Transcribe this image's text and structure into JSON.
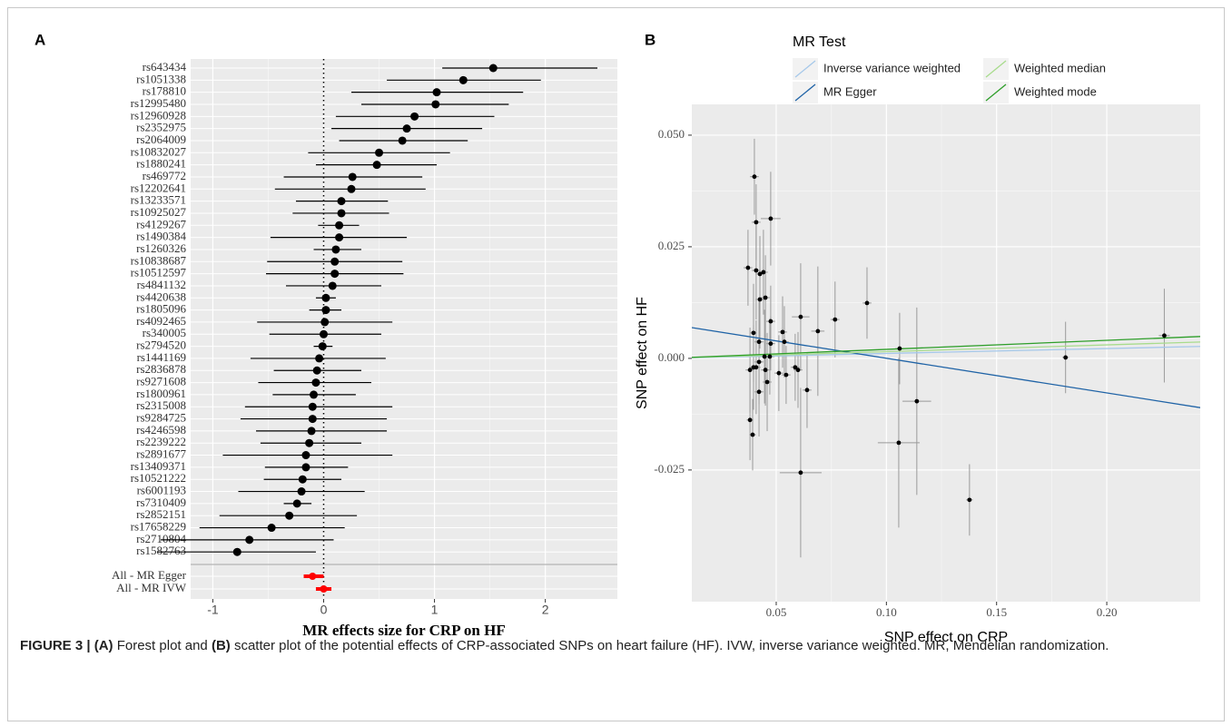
{
  "chart_data": [
    {
      "type": "forest",
      "panel_label": "A",
      "xlabel": "MR effects size for CRP on HF",
      "xlim": [
        -1.2,
        2.65
      ],
      "xticks": [
        -1,
        0,
        1,
        2
      ],
      "ref_line": 0,
      "grid": true,
      "series": [
        {
          "color": "#000000",
          "categories": [
            "rs643434",
            "rs1051338",
            "rs178810",
            "rs12995480",
            "rs12960928",
            "rs2352975",
            "rs2064009",
            "rs10832027",
            "rs1880241",
            "rs469772",
            "rs12202641",
            "rs13233571",
            "rs10925027",
            "rs4129267",
            "rs1490384",
            "rs1260326",
            "rs10838687",
            "rs10512597",
            "rs4841132",
            "rs4420638",
            "rs1805096",
            "rs4092465",
            "rs340005",
            "rs2794520",
            "rs1441169",
            "rs2836878",
            "rs9271608",
            "rs1800961",
            "rs2315008",
            "rs9284725",
            "rs4246598",
            "rs2239222",
            "rs2891677",
            "rs13409371",
            "rs10521222",
            "rs6001193",
            "rs7310409",
            "rs2852151",
            "rs17658229",
            "rs2710804",
            "rs1582763"
          ],
          "values": [
            1.53,
            1.26,
            1.02,
            1.01,
            0.82,
            0.75,
            0.71,
            0.5,
            0.48,
            0.26,
            0.25,
            0.16,
            0.16,
            0.14,
            0.14,
            0.11,
            0.1,
            0.1,
            0.08,
            0.02,
            0.02,
            0.01,
            0,
            -0.01,
            -0.04,
            -0.06,
            -0.07,
            -0.09,
            -0.1,
            -0.1,
            -0.11,
            -0.13,
            -0.16,
            -0.16,
            -0.19,
            -0.2,
            -0.24,
            -0.31,
            -0.47,
            -0.67,
            -0.78
          ],
          "lower": [
            1.07,
            0.57,
            0.25,
            0.34,
            0.11,
            0.07,
            0.14,
            -0.14,
            -0.07,
            -0.36,
            -0.44,
            -0.25,
            -0.28,
            -0.05,
            -0.48,
            -0.09,
            -0.51,
            -0.52,
            -0.34,
            -0.07,
            -0.13,
            -0.6,
            -0.49,
            -0.09,
            -0.66,
            -0.45,
            -0.59,
            -0.46,
            -0.71,
            -0.75,
            -0.61,
            -0.57,
            -0.91,
            -0.53,
            -0.54,
            -0.77,
            -0.36,
            -0.94,
            -1.12,
            -1.47,
            -1.5
          ],
          "upper": [
            2.47,
            1.96,
            1.8,
            1.67,
            1.54,
            1.43,
            1.3,
            1.14,
            1.02,
            0.89,
            0.92,
            0.58,
            0.59,
            0.32,
            0.75,
            0.34,
            0.71,
            0.72,
            0.52,
            0.11,
            0.16,
            0.62,
            0.52,
            0.08,
            0.56,
            0.34,
            0.43,
            0.29,
            0.62,
            0.57,
            0.57,
            0.34,
            0.62,
            0.22,
            0.16,
            0.37,
            -0.11,
            0.3,
            0.19,
            0.09,
            -0.07
          ]
        },
        {
          "color": "#ff0000",
          "categories": [
            "All - MR Egger",
            "All - MR IVW"
          ],
          "values": [
            -0.1,
            0
          ],
          "lower": [
            -0.18,
            -0.07
          ],
          "upper": [
            0,
            0.07
          ]
        }
      ]
    },
    {
      "type": "scatter",
      "panel_label": "B",
      "xlabel": "SNP effect on CRP",
      "ylabel": "SNP effect on HF",
      "legend_title": "MR Test",
      "xlim": [
        0.0117,
        0.2424
      ],
      "ylim": [
        -0.0545,
        0.0569
      ],
      "xticks": [
        0.05,
        {
          "value": 0.1,
          "label": "0.10"
        },
        0.15,
        {
          "value": 0.2,
          "label": "0.20"
        }
      ],
      "yticks": [
        {
          "value": 0.05,
          "label": "0.050"
        },
        {
          "value": 0.025,
          "label": "0.025"
        },
        {
          "value": 0,
          "label": "0.000"
        },
        {
          "value": -0.025,
          "label": "-0.025"
        }
      ],
      "grid": true,
      "color": "#000000",
      "error_color": "#9a9a9a",
      "x": [
        0.0401,
        0.0409,
        0.0475,
        0.0372,
        0.0409,
        0.0426,
        0.0442,
        0.0426,
        0.0451,
        0.0475,
        0.0397,
        0.0529,
        0.0537,
        0.0422,
        0.0475,
        0.0611,
        0.0689,
        0.0767,
        0.0912,
        0.106,
        0.1813,
        0.2261,
        0.0447,
        0.0471,
        0.0381,
        0.0397,
        0.0409,
        0.0451,
        0.0459,
        0.0422,
        0.0512,
        0.0586,
        0.0599,
        0.0545,
        0.064,
        0.0381,
        0.0393,
        0.1138,
        0.1056,
        0.0611,
        0.1377,
        0.0422
      ],
      "y": [
        0.0407,
        0.0305,
        0.0313,
        0.0203,
        0.0197,
        0.0189,
        0.0193,
        0.0132,
        0.0136,
        0.0083,
        0.0057,
        0.0059,
        0.0037,
        0.0037,
        0.0033,
        0.0093,
        0.0061,
        0.0087,
        0.0124,
        0.0022,
        0.0002,
        0.0051,
        0.0004,
        0.0004,
        -0.0026,
        -0.002,
        -0.002,
        -0.0026,
        -0.0053,
        -0.0075,
        -0.0033,
        -0.002,
        -0.0026,
        -0.0037,
        -0.0071,
        -0.0138,
        -0.0171,
        -0.0096,
        -0.0189,
        -0.0256,
        -0.0317,
        -0.0008
      ],
      "xerr": [
        0.002,
        0.002,
        0.0045,
        0.002,
        0.002,
        0.002,
        0.002,
        0.002,
        0.002,
        0.002,
        0.0015,
        0.002,
        0.002,
        0.002,
        0.002,
        0.004,
        0.003,
        0.002,
        0.002,
        0.002,
        0.0015,
        0.0025,
        0.002,
        0.002,
        0.002,
        0.002,
        0.002,
        0.002,
        0.002,
        0.002,
        0.002,
        0.002,
        0.002,
        0.002,
        0.002,
        0.0015,
        0.0015,
        0.0065,
        0.0095,
        0.0095,
        0.0015,
        0.002
      ],
      "yerr": [
        0.0085,
        0.0085,
        0.0105,
        0.0085,
        0.011,
        0.0085,
        0.0095,
        0.011,
        0.0095,
        0.008,
        0.011,
        0.008,
        0.008,
        0.01,
        0.006,
        0.012,
        0.0145,
        0.0085,
        0.008,
        0.008,
        0.008,
        0.0105,
        0.0105,
        0.0085,
        0.0095,
        0.0095,
        0.0105,
        0.008,
        0.011,
        0.01,
        0.0085,
        0.0075,
        0.0085,
        0.0065,
        0.0085,
        0.009,
        0.008,
        0.021,
        0.019,
        0.019,
        0.008,
        0.0095
      ],
      "lines": [
        {
          "name": "Inverse variance weighted",
          "color": "#a6c8ea",
          "intercept": 0,
          "slope": 0.011
        },
        {
          "name": "MR Egger",
          "color": "#1f63a6",
          "intercept": 0.0078,
          "slope": -0.0777
        },
        {
          "name": "Weighted median",
          "color": "#a8dc8c",
          "intercept": 0,
          "slope": 0.0151
        },
        {
          "name": "Weighted mode",
          "color": "#2e9e2a",
          "intercept": 0,
          "slope": 0.0202
        }
      ]
    }
  ],
  "caption": [
    {
      "text": "FIGURE 3 | ",
      "bold": true
    },
    {
      "text": "(A)",
      "bold": true
    },
    {
      "text": " Forest plot and ",
      "bold": false
    },
    {
      "text": "(B)",
      "bold": true
    },
    {
      "text": " scatter plot of the potential effects of CRP-associated SNPs on heart failure (HF). IVW, inverse variance weighted. MR, Mendelian randomization.",
      "bold": false
    }
  ]
}
